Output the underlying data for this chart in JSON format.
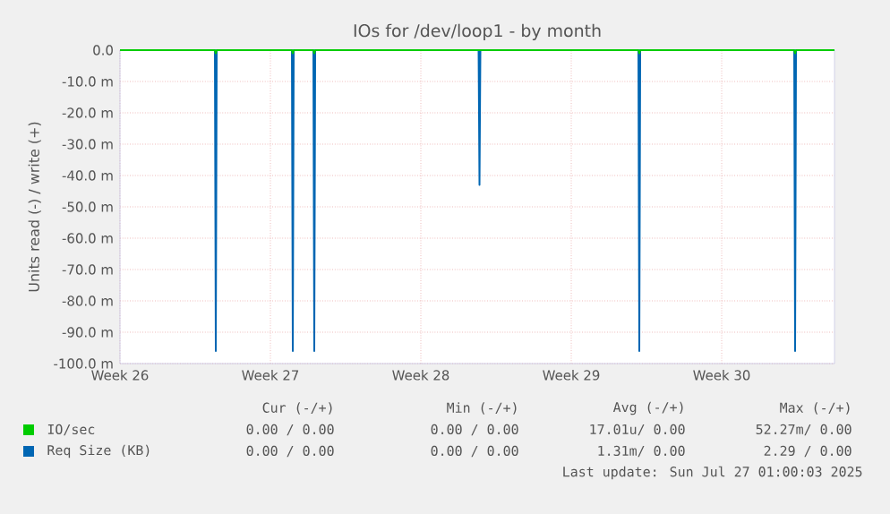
{
  "chart_data": {
    "type": "line",
    "title": "IOs for /dev/loop1 - by month",
    "ylabel": "Units read (-) / write (+)",
    "xlim": [
      "2025-06-23",
      "2025-07-26T06:00"
    ],
    "xticks": [
      {
        "value": "2025-06-23",
        "label": "Week 26"
      },
      {
        "value": "2025-06-30",
        "label": "Week 27"
      },
      {
        "value": "2025-07-07",
        "label": "Week 28"
      },
      {
        "value": "2025-07-14",
        "label": "Week 29"
      },
      {
        "value": "2025-07-21",
        "label": "Week 30"
      }
    ],
    "ylim": [
      -100,
      0
    ],
    "yticks": [
      {
        "value": -100,
        "label": "-100.0 m"
      },
      {
        "value": -90,
        "label": "-90.0 m"
      },
      {
        "value": -80,
        "label": "-80.0 m"
      },
      {
        "value": -70,
        "label": "-70.0 m"
      },
      {
        "value": -60,
        "label": "-60.0 m"
      },
      {
        "value": -50,
        "label": "-50.0 m"
      },
      {
        "value": -40,
        "label": "-40.0 m"
      },
      {
        "value": -30,
        "label": "-30.0 m"
      },
      {
        "value": -20,
        "label": "-20.0 m"
      },
      {
        "value": -10,
        "label": "-10.0 m"
      },
      {
        "value": 0,
        "label": "0.0"
      }
    ],
    "grid": true,
    "legend": "bottom",
    "series": [
      {
        "name": "Req Size (KB)",
        "color": "#0066b3",
        "x": [
          "2025-06-23",
          "2025-06-27T10:00",
          "2025-06-27T11:00",
          "2025-06-27T12:00",
          "2025-07-01T00:00",
          "2025-07-01T01:00",
          "2025-07-01T02:00",
          "2025-07-02T00:00",
          "2025-07-02T01:00",
          "2025-07-02T02:00",
          "2025-07-09T16:30",
          "2025-07-09T17:30",
          "2025-07-09T18:30",
          "2025-07-17T03:00",
          "2025-07-17T04:00",
          "2025-07-17T05:00",
          "2025-07-24T09:00",
          "2025-07-24T10:00",
          "2025-07-24T11:00",
          "2025-07-26T06:00"
        ],
        "values": [
          0,
          0,
          -96,
          0,
          0,
          -96,
          0,
          0,
          -96,
          0,
          0,
          -43,
          0,
          0,
          -96,
          0,
          0,
          -96,
          0,
          0
        ]
      },
      {
        "name": "IO/sec",
        "color": "#00cc00",
        "x": [
          "2025-06-23",
          "2025-06-27T10:00",
          "2025-06-27T11:00",
          "2025-06-27T12:00",
          "2025-07-01T00:00",
          "2025-07-01T01:00",
          "2025-07-01T02:00",
          "2025-07-02T00:00",
          "2025-07-02T01:00",
          "2025-07-02T02:00",
          "2025-07-17T03:00",
          "2025-07-17T04:00",
          "2025-07-17T05:00",
          "2025-07-24T09:00",
          "2025-07-24T10:00",
          "2025-07-24T11:00",
          "2025-07-26T06:00"
        ],
        "values": [
          0,
          0,
          -1,
          0,
          0,
          -1,
          0,
          0,
          -1,
          0,
          0,
          -1,
          0,
          0,
          -1,
          0,
          0
        ]
      }
    ],
    "annotations": [
      "Cur (-/+)",
      "Min (-/+)",
      "Avg (-/+)",
      "Max (-/+)",
      "0.00 / 0.00",
      "0.00 / 0.00",
      "17.01u/ 0.00",
      "52.27m/ 0.00",
      "0.00 / 0.00",
      "0.00 / 0.00",
      "1.31m/ 0.00",
      "2.29 / 0.00",
      "Last update: Sun Jul 27 01:00:03 2025"
    ]
  }
}
